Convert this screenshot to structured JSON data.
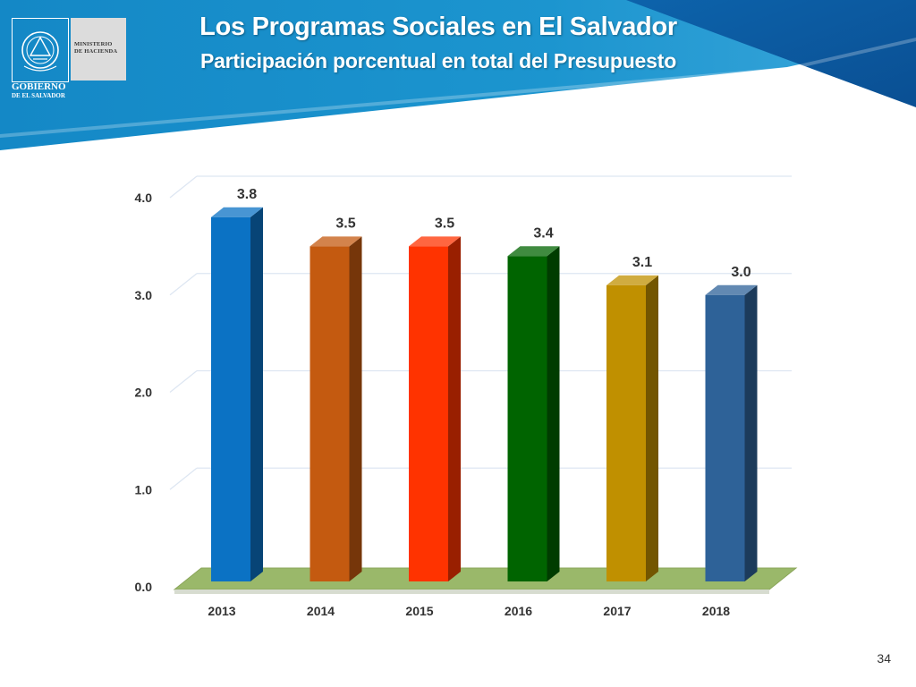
{
  "header": {
    "title": "Los Programas Sociales en El Salvador",
    "subtitle": "Participación porcentual en total del Presupuesto",
    "ministry_line1": "MINISTERIO",
    "ministry_line2": "DE HACIENDA",
    "gov_line1": "GOBIERNO",
    "gov_line2": "DE EL SALVADOR",
    "banner_colors": [
      "#1b8ec9",
      "#0b5ca4"
    ]
  },
  "chart_data": {
    "type": "bar",
    "categories": [
      "2013",
      "2014",
      "2015",
      "2016",
      "2017",
      "2018"
    ],
    "values": [
      3.8,
      3.5,
      3.5,
      3.4,
      3.1,
      3.0
    ],
    "value_labels": [
      "3.8",
      "3.5",
      "3.5",
      "3.4",
      "3.1",
      "3.0"
    ],
    "yticks": [
      "0.0",
      "1.0",
      "2.0",
      "3.0",
      "4.0"
    ],
    "ylim": [
      0,
      4
    ],
    "colors": [
      "#0b72c4",
      "#c45a10",
      "#ff3300",
      "#006400",
      "#c09000",
      "#2e6298"
    ],
    "floor_color": "#9ab86a",
    "grid": true,
    "three_d": true
  },
  "footer": {
    "page_number": "34"
  }
}
